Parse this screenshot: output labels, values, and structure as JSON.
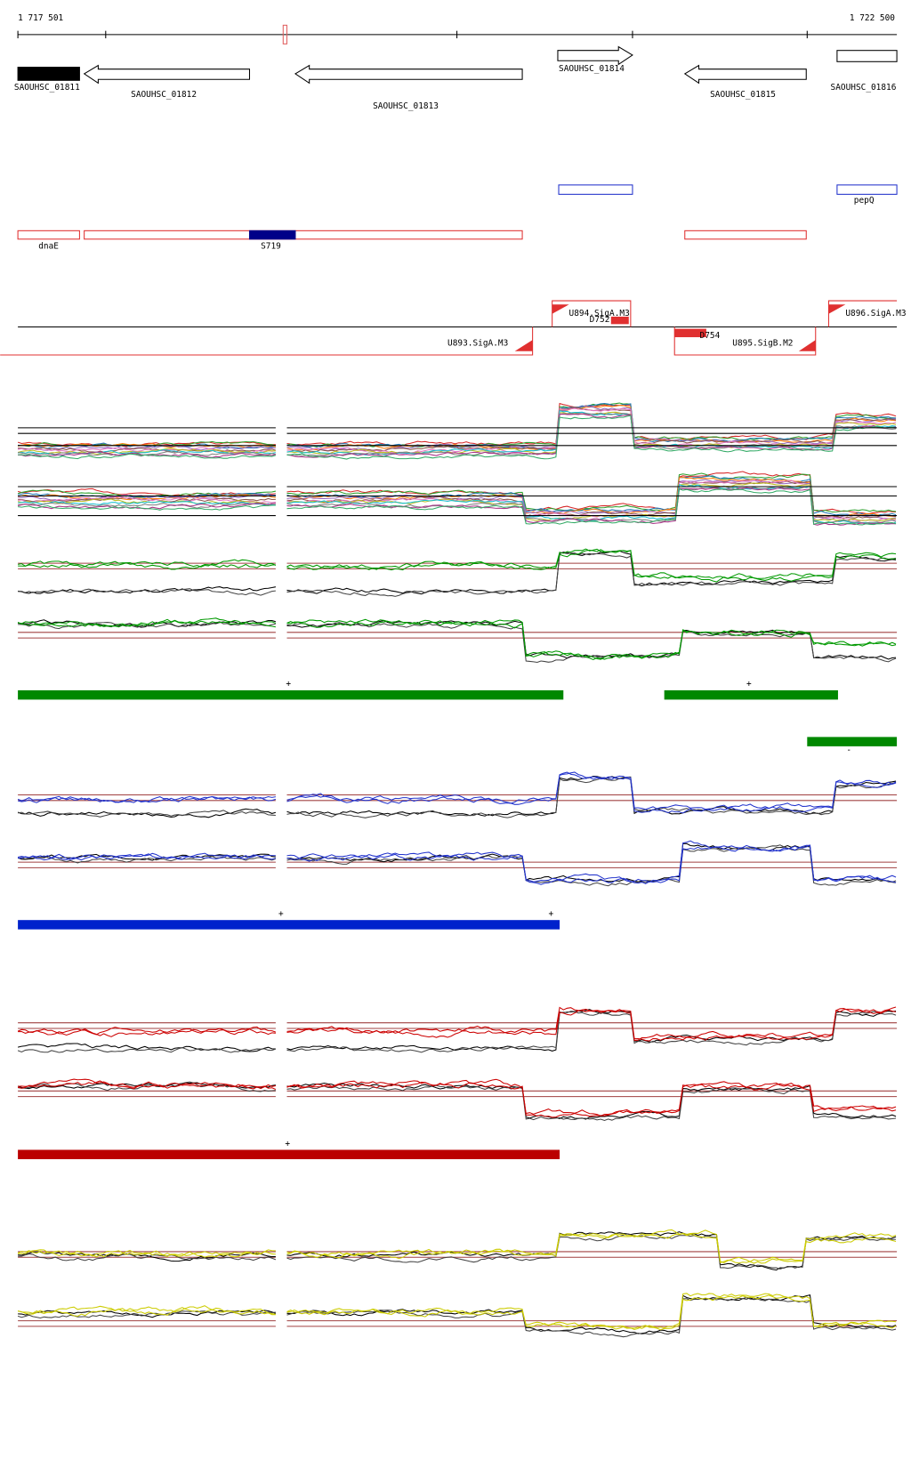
{
  "ruler": {
    "start": "1 717 501",
    "end": "1 722 500"
  },
  "genes": [
    "SAOUHSC_01811",
    "SAOUHSC_01812",
    "SAOUHSC_01813",
    "SAOUHSC_01814",
    "SAOUHSC_01815",
    "SAOUHSC_01816"
  ],
  "features": [
    "dnaE",
    "S719",
    "pepQ"
  ],
  "transcripts": [
    "U894.SigA.M3",
    "D752",
    "U893.SigA.M3",
    "U895.SigB.M2",
    "D754",
    "U896.SigA.M3"
  ],
  "strand_marks": [
    "+",
    "+",
    "-",
    "+",
    "+",
    "+"
  ]
}
